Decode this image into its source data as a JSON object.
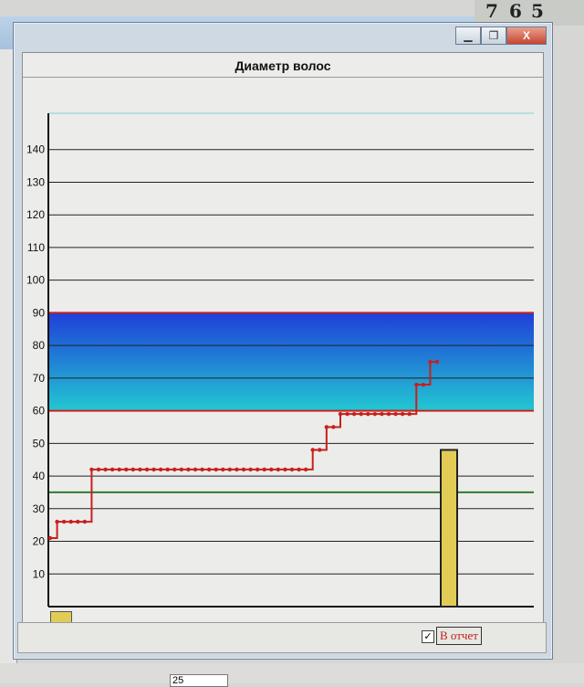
{
  "clock": {
    "digits": [
      "7",
      "6",
      "5"
    ]
  },
  "window": {
    "controls": {
      "minimize_icon": "minimize-icon",
      "maximize_icon": "maximize-icon",
      "close_icon": "close-icon",
      "close_glyph": "X"
    }
  },
  "chart_data": {
    "type": "line",
    "title": "Диаметр волос",
    "xlabel": "",
    "ylabel": "",
    "ylim": [
      0,
      150
    ],
    "yticks": [
      10,
      20,
      30,
      40,
      50,
      60,
      70,
      80,
      90,
      100,
      110,
      120,
      130,
      140
    ],
    "grid": true,
    "band": {
      "from": 60,
      "to": 90,
      "colors": [
        "#1f3fd8",
        "#23c7d2"
      ],
      "edge_color": "#c8201c"
    },
    "reference_line": {
      "value": 35,
      "color": "#2e7d32"
    },
    "series": [
      {
        "color": "#c8201c",
        "values": [
          21,
          26,
          26,
          26,
          26,
          26,
          42,
          42,
          42,
          42,
          42,
          42,
          42,
          42,
          42,
          42,
          42,
          42,
          42,
          42,
          42,
          42,
          42,
          42,
          42,
          42,
          42,
          42,
          42,
          42,
          42,
          42,
          42,
          42,
          42,
          42,
          42,
          42,
          48,
          48,
          55,
          55,
          59,
          59,
          59,
          59,
          59,
          59,
          59,
          59,
          59,
          59,
          59,
          68,
          68,
          75,
          75
        ]
      }
    ],
    "bar": {
      "value": 48,
      "color": "#e2cc55"
    }
  },
  "footer": {
    "report_label": "В отчет",
    "report_checked": "✓",
    "under_field_value": "25"
  }
}
